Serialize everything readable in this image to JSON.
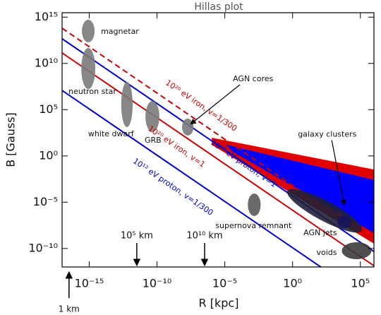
{
  "chart_data": {
    "type": "hillas",
    "title": "Hillas plot",
    "xlabel": "R [kpc]",
    "ylabel": "B [Gauss]",
    "xlog": true,
    "ylog": true,
    "xlim": [
      1e-17,
      1000000.0
    ],
    "ylim": [
      1e-12,
      3000000000000000.0
    ],
    "xticks": [
      {
        "value": 1e-15,
        "label": "10⁻¹⁵"
      },
      {
        "value": 1e-10,
        "label": "10⁻¹⁰"
      },
      {
        "value": 1e-05,
        "label": "10⁻⁵"
      },
      {
        "value": 1,
        "label": "10⁰"
      },
      {
        "value": 100000.0,
        "label": "10⁵"
      }
    ],
    "yticks": [
      {
        "value": 1000000000000000.0,
        "label": "10¹⁵"
      },
      {
        "value": 10000000000.0,
        "label": "10¹⁰"
      },
      {
        "value": 100000.0,
        "label": "10⁵"
      },
      {
        "value": 1,
        "label": "10⁰"
      },
      {
        "value": 1e-05,
        "label": "10⁻⁵"
      },
      {
        "value": 1e-10,
        "label": "10⁻¹⁰"
      }
    ],
    "regions": [
      {
        "color": "#e00000",
        "x": [
          1.1e-06,
          1000000.0,
          1000000.0,
          1.1e-06
        ],
        "y": [
          93,
          0.034,
          3.3e-10,
          16
        ]
      },
      {
        "color": "#0000ff",
        "x": [
          1.2e-05,
          1000000.0,
          1000000.0,
          4e-05
        ],
        "y": [
          16,
          0.0025,
          4.6e-09,
          2.8
        ]
      }
    ],
    "series": [
      {
        "name": "10²⁰ eV iron, v=1/300",
        "color": "#cc0000",
        "dashed": true,
        "x": [
          1e-17,
          1000000.0
        ],
        "values": [
          63000000000000.0,
          6.3e-10
        ]
      },
      {
        "name": "10²⁰ eV iron, v=1",
        "color": "#cc0000",
        "dashed": false,
        "x": [
          1e-17,
          1000000.0
        ],
        "values": [
          135000000000.0,
          1.35e-12
        ]
      },
      {
        "name": "10²⁰ eV proton, v=1",
        "color": "#0000cc",
        "dashed": false,
        "x": [
          1e-17,
          1000000.0
        ],
        "values": [
          4600000000000.0,
          4.6e-11
        ]
      },
      {
        "name": "10¹² eV proton, v=1/300",
        "color": "#0000cc",
        "dashed": false,
        "x": [
          1e-17,
          1000000.0
        ],
        "values": [
          12000000.0,
          1.2e-16
        ]
      }
    ],
    "objects": [
      {
        "name": "magnetar",
        "color": "#7a7a7a",
        "xrange": [
          2.9e-16,
          2.5e-15
        ],
        "yrange": [
          1900000000000.0,
          520000000000000.0
        ]
      },
      {
        "name": "neutron star",
        "color": "#7a7a7a",
        "xrange": [
          2.6e-16,
          2.8e-15
        ],
        "yrange": [
          17000000.0,
          460000000000.0
        ]
      },
      {
        "name": "white dwarf",
        "color": "#7a7a7a",
        "xrange": [
          2.3e-13,
          1.6e-12
        ],
        "yrange": [
          1300,
          100000000.0
        ]
      },
      {
        "name": "GRB",
        "color": "#7a7a7a",
        "xrange": [
          1.4e-11,
          1.5e-10
        ],
        "yrange": [
          380,
          870000.0
        ]
      },
      {
        "name": "AGN cores",
        "color": "#7a7a7a",
        "xrange": [
          7e-09,
          4.9e-08
        ],
        "yrange": [
          160,
          11000
        ]
      },
      {
        "name": "supernova remnant",
        "color": "#5a5a5a",
        "xrange": [
          0.0005,
          0.0044
        ],
        "yrange": [
          3.2e-07,
          8.7e-05
        ]
      },
      {
        "name": "galaxy clusters",
        "color": "#202038",
        "xrange": [
          0.32,
          170000.0
        ],
        "yrange": [
          1.1e-08,
          0.00012
        ]
      },
      {
        "name": "AGN jets",
        "color": "#151560",
        "xrange": [
          2000,
          22000
        ],
        "yrange": [
          1.6e-08,
          3.7e-07
        ]
      },
      {
        "name": "voids",
        "color": "#3c3c3c",
        "xrange": [
          4300,
          650000.0
        ],
        "yrange": [
          6.9e-12,
          4.7e-10
        ]
      }
    ],
    "markers": [
      {
        "label": "1 km",
        "x": 3.24e-17
      },
      {
        "label": "10⁵ km",
        "x": 3.24e-12
      },
      {
        "label": "10¹⁰ km",
        "x": 3.24e-07
      }
    ]
  }
}
